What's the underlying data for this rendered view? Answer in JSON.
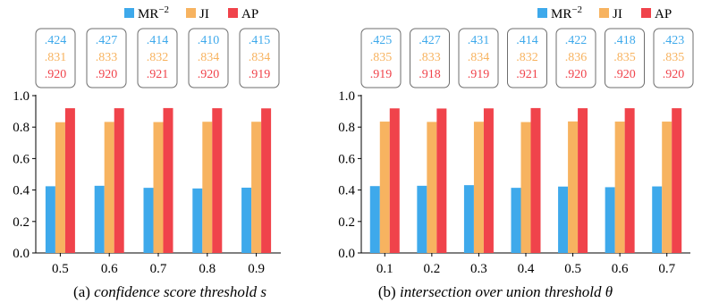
{
  "colors": {
    "mr": "#3ea9eb",
    "ji": "#f7b360",
    "ap": "#f0434b"
  },
  "legend": [
    {
      "key": "mr",
      "label": "MR",
      "sup": "−2"
    },
    {
      "key": "ji",
      "label": "JI"
    },
    {
      "key": "ap",
      "label": "AP"
    }
  ],
  "chart_data": [
    {
      "type": "bar",
      "caption_prefix": "(a)",
      "caption_italic": "confidence score threshold",
      "caption_symbol": "s",
      "categories": [
        "0.5",
        "0.6",
        "0.7",
        "0.8",
        "0.9"
      ],
      "ylim": [
        0,
        1.0
      ],
      "yticks": [
        "0.0",
        "0.2",
        "0.4",
        "0.6",
        "0.8",
        "1.0"
      ],
      "series": [
        {
          "name": "MR−2",
          "key": "mr",
          "values": [
            0.424,
            0.427,
            0.414,
            0.41,
            0.415
          ]
        },
        {
          "name": "JI",
          "key": "ji",
          "values": [
            0.831,
            0.833,
            0.832,
            0.834,
            0.834
          ]
        },
        {
          "name": "AP",
          "key": "ap",
          "values": [
            0.92,
            0.92,
            0.921,
            0.92,
            0.919
          ]
        }
      ],
      "labels": [
        [
          ".424",
          ".831",
          ".920"
        ],
        [
          ".427",
          ".833",
          ".920"
        ],
        [
          ".414",
          ".832",
          ".921"
        ],
        [
          ".410",
          ".834",
          ".920"
        ],
        [
          ".415",
          ".834",
          ".919"
        ]
      ]
    },
    {
      "type": "bar",
      "caption_prefix": "(b)",
      "caption_italic": "intersection over union threshold",
      "caption_symbol": "θ",
      "categories": [
        "0.1",
        "0.2",
        "0.3",
        "0.4",
        "0.5",
        "0.6",
        "0.7"
      ],
      "ylim": [
        0,
        1.0
      ],
      "yticks": [
        "0.0",
        "0.2",
        "0.4",
        "0.6",
        "0.8",
        "1.0"
      ],
      "series": [
        {
          "name": "MR−2",
          "key": "mr",
          "values": [
            0.425,
            0.427,
            0.431,
            0.414,
            0.422,
            0.418,
            0.423
          ]
        },
        {
          "name": "JI",
          "key": "ji",
          "values": [
            0.835,
            0.833,
            0.834,
            0.832,
            0.836,
            0.835,
            0.835
          ]
        },
        {
          "name": "AP",
          "key": "ap",
          "values": [
            0.919,
            0.918,
            0.919,
            0.921,
            0.92,
            0.92,
            0.92
          ]
        }
      ],
      "labels": [
        [
          ".425",
          ".835",
          ".919"
        ],
        [
          ".427",
          ".833",
          ".918"
        ],
        [
          ".431",
          ".834",
          ".919"
        ],
        [
          ".414",
          ".832",
          ".921"
        ],
        [
          ".422",
          ".836",
          ".920"
        ],
        [
          ".418",
          ".835",
          ".920"
        ],
        [
          ".423",
          ".835",
          ".920"
        ]
      ]
    }
  ]
}
